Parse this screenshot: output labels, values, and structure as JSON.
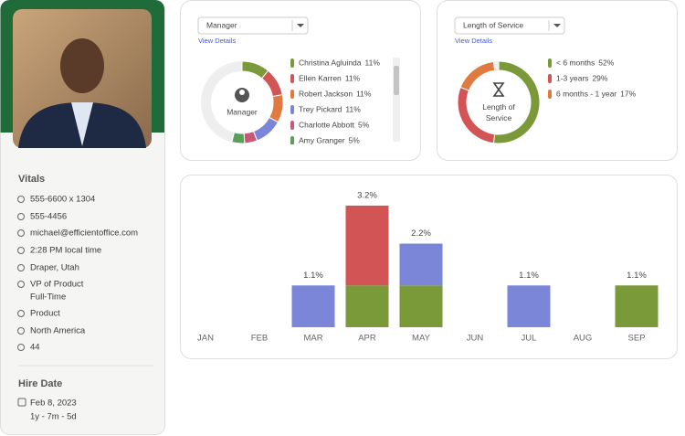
{
  "profile": {
    "vitals_title": "Vitals",
    "vitals": [
      "555-6600 x 1304",
      "555-4456",
      "michael@efficientoffice.com",
      "2:28 PM local time",
      "Draper, Utah",
      "VP of Product",
      "Full-Time",
      "Product",
      "North America",
      "44"
    ],
    "hire_title": "Hire Date",
    "hire_date": "Feb 8, 2023",
    "tenure": "1y - 7m - 5d"
  },
  "chart_data": [
    {
      "type": "donut",
      "dropdown": "Manager",
      "link": "View Details",
      "center_label": "Manager",
      "categories": [
        "Christina Agluinda",
        "Ellen Karren",
        "Robert Jackson",
        "Trey Pickard",
        "Charlotte Abbott",
        "Amy Granger"
      ],
      "values": [
        11,
        11,
        11,
        11,
        5,
        5
      ],
      "value_labels": [
        "11%",
        "11%",
        "11%",
        "11%",
        "5%",
        "5%"
      ],
      "colors": [
        "#7a9a3a",
        "#d35454",
        "#e07a3f",
        "#7b86d9",
        "#c8587a",
        "#5aa05a"
      ]
    },
    {
      "type": "donut",
      "dropdown": "Length of Service",
      "link": "View Details",
      "center_label": "Length of Service",
      "categories": [
        "< 6 months",
        "1-3 years",
        "6 months - 1 year"
      ],
      "values": [
        52,
        29,
        17
      ],
      "value_labels": [
        "52%",
        "29%",
        "17%"
      ],
      "colors": [
        "#7a9a3a",
        "#d35454",
        "#e07a3f"
      ]
    },
    {
      "type": "stacked_bar",
      "categories": [
        "JAN",
        "FEB",
        "MAR",
        "APR",
        "MAY",
        "JUN",
        "JUL",
        "AUG",
        "SEP"
      ],
      "ylim": [
        0,
        3.8
      ],
      "series": [
        {
          "color": "#7a9a3a",
          "values": [
            null,
            null,
            null,
            1.1,
            1.1,
            null,
            null,
            null,
            1.1
          ]
        },
        {
          "color": "#d35454",
          "values": [
            null,
            null,
            null,
            2.1,
            null,
            null,
            null,
            null,
            null
          ]
        },
        {
          "color": "#7b86d9",
          "values": [
            null,
            null,
            1.1,
            null,
            1.1,
            null,
            1.1,
            null,
            null
          ]
        }
      ],
      "value_labels": [
        null,
        null,
        "1.1%",
        "3.2%",
        "2.2%",
        null,
        "1.1%",
        null,
        "1.1%"
      ]
    }
  ]
}
